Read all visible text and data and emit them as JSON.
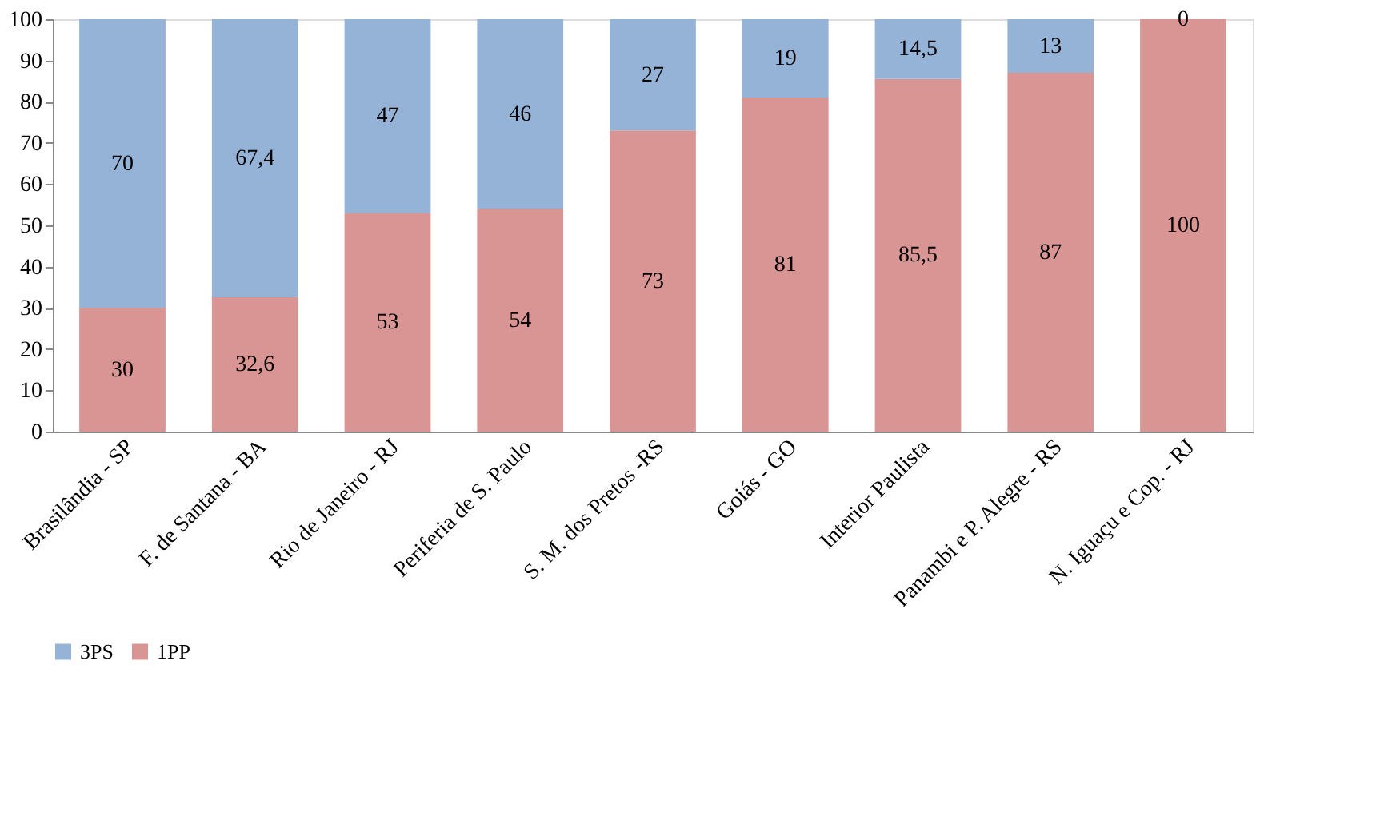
{
  "chart_data": {
    "type": "bar",
    "stacked": true,
    "categories": [
      "Brasilândia - SP",
      "F. de Santana - BA",
      "Rio de Janeiro - RJ",
      "Periferia de S. Paulo",
      "S. M. dos Pretos -RS",
      "Goiás - GO",
      "Interior Paulista",
      "Panambi e P. Alegre - RS",
      "N. Iguaçu e Cop. - RJ"
    ],
    "series": [
      {
        "name": "1PP",
        "color": "#d99594",
        "values": [
          30,
          32.6,
          53,
          54,
          73,
          81,
          85.5,
          87,
          100
        ],
        "value_labels": [
          "30",
          "32,6",
          "53",
          "54",
          "73",
          "81",
          "85,5",
          "87",
          "100"
        ]
      },
      {
        "name": "3PS",
        "color": "#95b3d7",
        "values": [
          70,
          67.4,
          47,
          46,
          27,
          19,
          14.5,
          13,
          0
        ],
        "value_labels": [
          "70",
          "67,4",
          "47",
          "46",
          "27",
          "19",
          "14,5",
          "13",
          "0"
        ]
      }
    ],
    "ylim": [
      0,
      100
    ],
    "yticks": [
      0,
      10,
      20,
      30,
      40,
      50,
      60,
      70,
      80,
      90,
      100
    ],
    "grid": false,
    "legend": "bottom"
  }
}
